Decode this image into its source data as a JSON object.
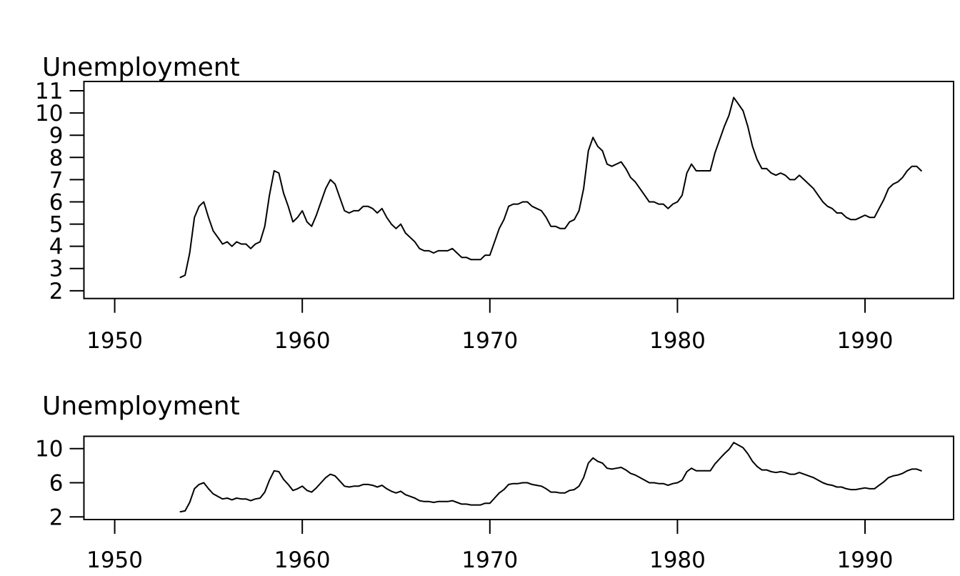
{
  "figure": {
    "background_color": "#ffffff",
    "line_color": "#000000",
    "text_color": "#000000"
  },
  "chart_data": {
    "type": "line",
    "series_name": "Unemployment",
    "frequency": "quarterly",
    "x_start": 1953.5,
    "x_step": 0.25,
    "x_end": 1993.0,
    "values": [
      2.6,
      2.7,
      3.7,
      5.3,
      5.8,
      6.0,
      5.3,
      4.7,
      4.4,
      4.1,
      4.2,
      4.0,
      4.2,
      4.1,
      4.1,
      3.9,
      4.1,
      4.2,
      4.9,
      6.3,
      7.4,
      7.3,
      6.4,
      5.8,
      5.1,
      5.3,
      5.6,
      5.1,
      4.9,
      5.4,
      6.0,
      6.6,
      7.0,
      6.8,
      6.2,
      5.6,
      5.5,
      5.6,
      5.6,
      5.8,
      5.8,
      5.7,
      5.5,
      5.7,
      5.3,
      5.0,
      4.8,
      5.0,
      4.6,
      4.4,
      4.2,
      3.9,
      3.8,
      3.8,
      3.7,
      3.8,
      3.8,
      3.8,
      3.9,
      3.7,
      3.5,
      3.5,
      3.4,
      3.4,
      3.4,
      3.6,
      3.6,
      4.2,
      4.8,
      5.2,
      5.8,
      5.9,
      5.9,
      6.0,
      6.0,
      5.8,
      5.7,
      5.6,
      5.3,
      4.9,
      4.9,
      4.8,
      4.8,
      5.1,
      5.2,
      5.6,
      6.6,
      8.3,
      8.9,
      8.5,
      8.3,
      7.7,
      7.6,
      7.7,
      7.8,
      7.5,
      7.1,
      6.9,
      6.6,
      6.3,
      6.0,
      6.0,
      5.9,
      5.9,
      5.7,
      5.9,
      6.0,
      6.3,
      7.3,
      7.7,
      7.4,
      7.4,
      7.4,
      7.4,
      8.2,
      8.8,
      9.4,
      9.9,
      10.7,
      10.4,
      10.1,
      9.4,
      8.5,
      7.9,
      7.5,
      7.5,
      7.3,
      7.2,
      7.3,
      7.2,
      7.0,
      7.0,
      7.2,
      7.0,
      6.8,
      6.6,
      6.3,
      6.0,
      5.8,
      5.7,
      5.5,
      5.5,
      5.3,
      5.2,
      5.2,
      5.3,
      5.4,
      5.3,
      5.3,
      5.7,
      6.1,
      6.6,
      6.8,
      6.9,
      7.1,
      7.4,
      7.6,
      7.6,
      7.4
    ],
    "panels": [
      {
        "title": "Unemployment",
        "xlabel": "",
        "ylabel": "",
        "grid": false,
        "legend": "none",
        "yticks": [
          2,
          3,
          4,
          5,
          6,
          7,
          8,
          9,
          10,
          11
        ],
        "xticks": [
          1950,
          1960,
          1970,
          1980,
          1990
        ],
        "xlim": [
          1948.36,
          1994.72
        ],
        "ylim": [
          1.65,
          11.42
        ],
        "box": {
          "left": 117.5,
          "top": 114,
          "right": 1335,
          "bottom": 417.7
        },
        "title_pos": {
          "x": 59,
          "baseline": 106
        },
        "xlabel_baseline": 487,
        "tick_len": 20
      },
      {
        "title": "Unemployment",
        "xlabel": "",
        "ylabel": "",
        "grid": false,
        "legend": "none",
        "yticks": [
          2,
          6,
          10
        ],
        "xticks": [
          1950,
          1960,
          1970,
          1980,
          1990
        ],
        "xlim": [
          1948.36,
          1994.72
        ],
        "ylim": [
          1.69,
          11.44
        ],
        "box": {
          "left": 117.5,
          "top": 610.5,
          "right": 1335,
          "bottom": 727
        },
        "title_pos": {
          "x": 59,
          "baseline": 580
        },
        "xlabel_baseline": 794,
        "tick_len": 20
      }
    ]
  }
}
